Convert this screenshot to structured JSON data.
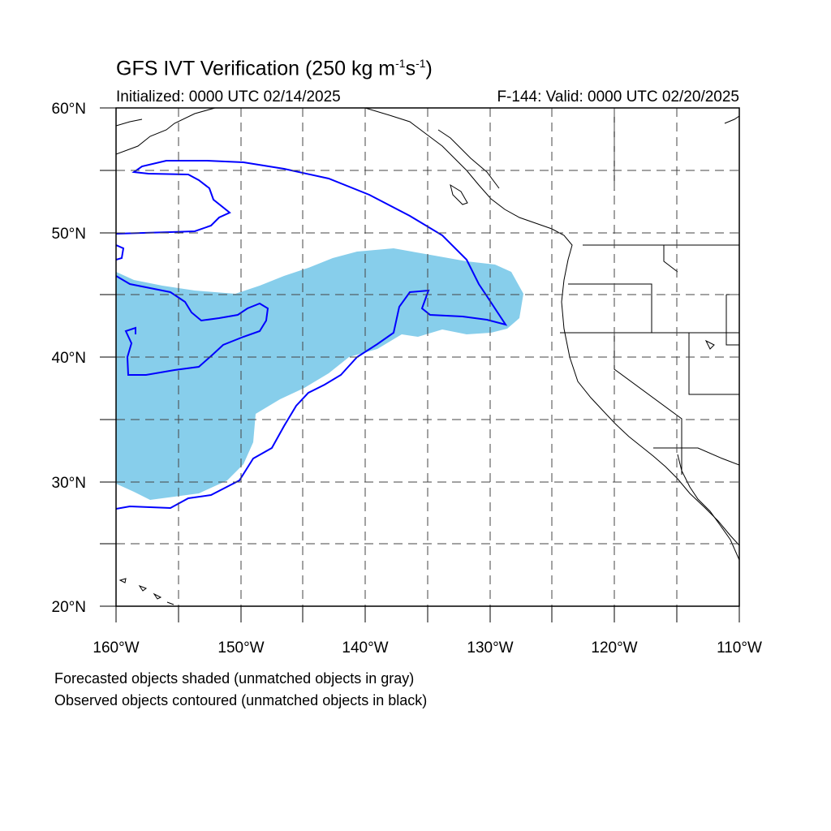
{
  "title": {
    "prefix": "GFS IVT Verification (250 kg m",
    "exp1": "-1",
    "mid": "s",
    "exp2": "-1",
    "suffix": ")"
  },
  "subtitle_left": "Initialized: 0000 UTC 02/14/2025",
  "subtitle_right": "F-144: Valid: 0000 UTC 02/20/2025",
  "map": {
    "lon_range": [
      -160,
      -110
    ],
    "lat_range": [
      20,
      60
    ],
    "lon_ticks": [
      "160°W",
      "150°W",
      "140°W",
      "130°W",
      "120°W",
      "110°W"
    ],
    "lat_ticks": [
      "20°N",
      "30°N",
      "40°N",
      "50°N",
      "60°N"
    ],
    "grid_spacing_deg": 5,
    "grid_style": "dashed",
    "forecast_fill_color": "#87CEEB",
    "observed_contour_color": "#0000FF",
    "coastline_color": "#000000"
  },
  "captions": {
    "line1": "Forecasted objects shaded (unmatched objects in gray)",
    "line2": "Observed objects contoured (unmatched objects in black)"
  }
}
